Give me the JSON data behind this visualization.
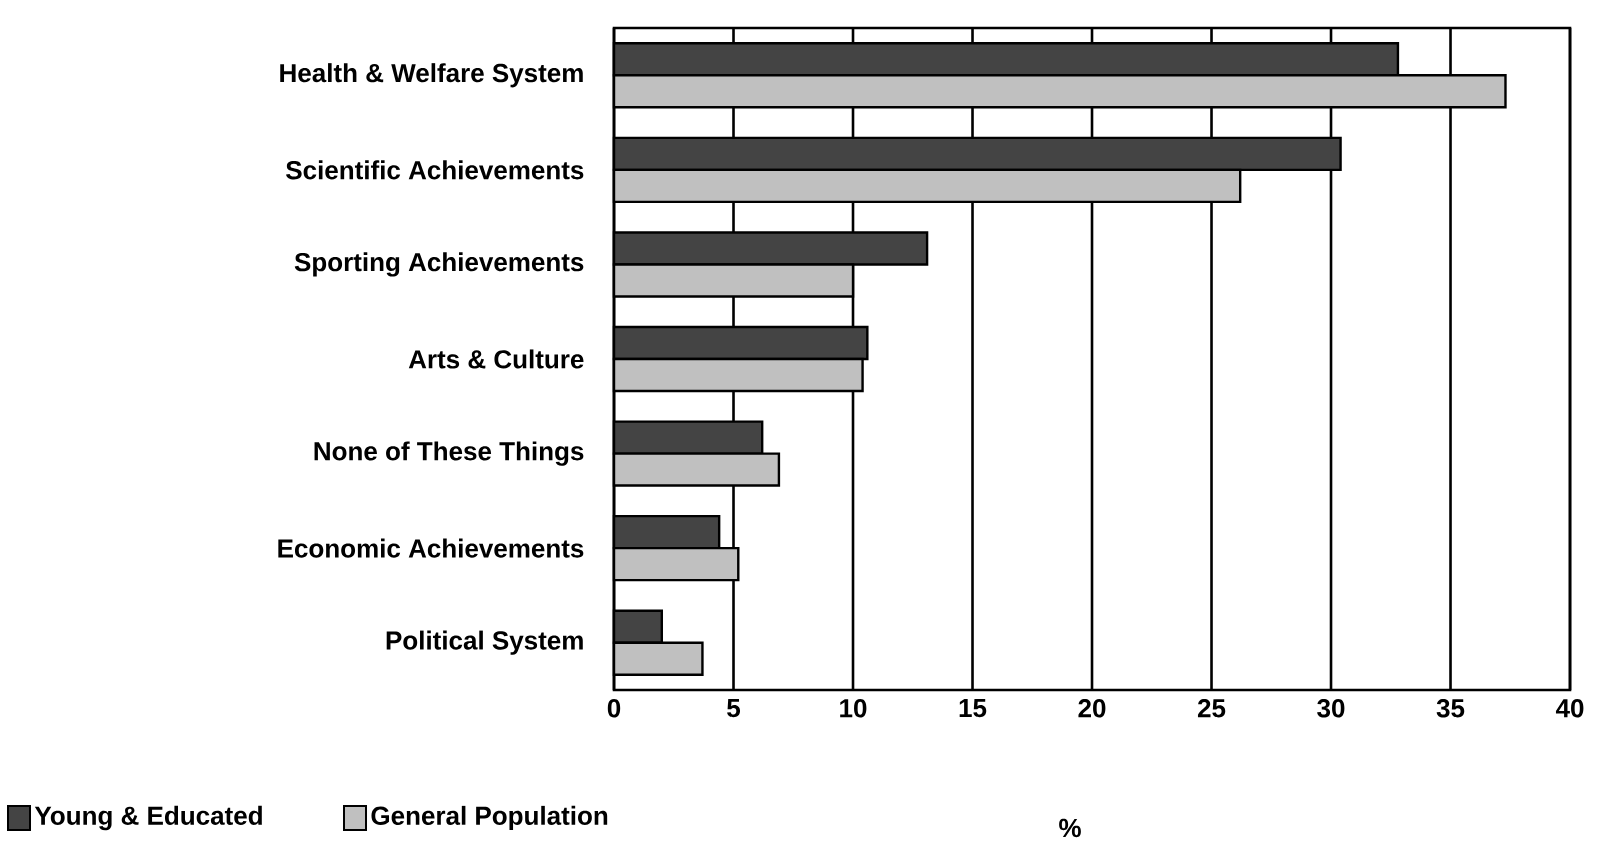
{
  "chart_data": {
    "type": "bar",
    "orientation": "horizontal",
    "xlabel": "%",
    "categories": [
      "Health & Welfare System",
      "Scientific Achievements",
      "Sporting Achievements",
      "Arts & Culture",
      "None of These Things",
      "Economic Achievements",
      "Political System"
    ],
    "series": [
      {
        "name": "Young & Educated",
        "color": "#444444",
        "values": [
          32.8,
          30.4,
          13.1,
          10.6,
          6.2,
          4.4,
          2.0
        ]
      },
      {
        "name": "General Population",
        "color": "#c0c0c0",
        "values": [
          37.3,
          26.2,
          10.0,
          10.4,
          6.9,
          5.2,
          3.7
        ]
      }
    ],
    "xlim": [
      0,
      40
    ],
    "xticks": [
      0,
      5,
      10,
      15,
      20,
      25,
      30,
      35,
      40
    ],
    "grid": "x",
    "legend": "bottom left"
  }
}
